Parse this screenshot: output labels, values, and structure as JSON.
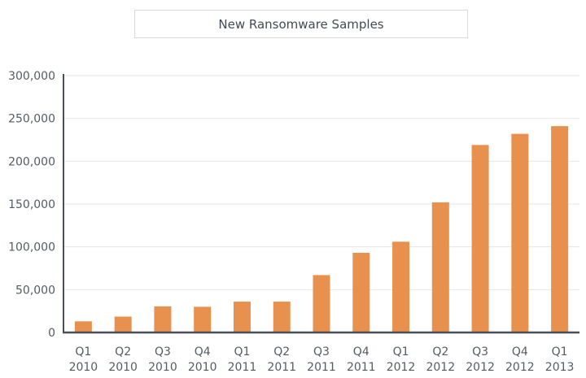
{
  "chart_data": {
    "type": "bar",
    "title": "New Ransomware Samples",
    "xlabel": "",
    "ylabel": "",
    "categories": [
      [
        "Q1",
        "2010"
      ],
      [
        "Q2",
        "2010"
      ],
      [
        "Q3",
        "2010"
      ],
      [
        "Q4",
        "2010"
      ],
      [
        "Q1",
        "2011"
      ],
      [
        "Q2",
        "2011"
      ],
      [
        "Q3",
        "2011"
      ],
      [
        "Q4",
        "2011"
      ],
      [
        "Q1",
        "2012"
      ],
      [
        "Q2",
        "2012"
      ],
      [
        "Q3",
        "2012"
      ],
      [
        "Q4",
        "2012"
      ],
      [
        "Q1",
        "2013"
      ]
    ],
    "values": [
      13000,
      18500,
      30500,
      30000,
      36000,
      36000,
      67000,
      93000,
      106000,
      152000,
      219000,
      232000,
      241000
    ],
    "ylim": [
      0,
      300000
    ],
    "yticks": [
      0,
      50000,
      100000,
      150000,
      200000,
      250000,
      300000
    ],
    "ytick_labels": [
      "0",
      "50,000",
      "100,000",
      "150,000",
      "200,000",
      "250,000",
      "300,000"
    ],
    "grid": true,
    "legend": "none",
    "colors": {
      "bar": "#e8904e",
      "axis": "#4a4f57",
      "grid": "#e6e6e6",
      "text": "#555b63"
    }
  }
}
